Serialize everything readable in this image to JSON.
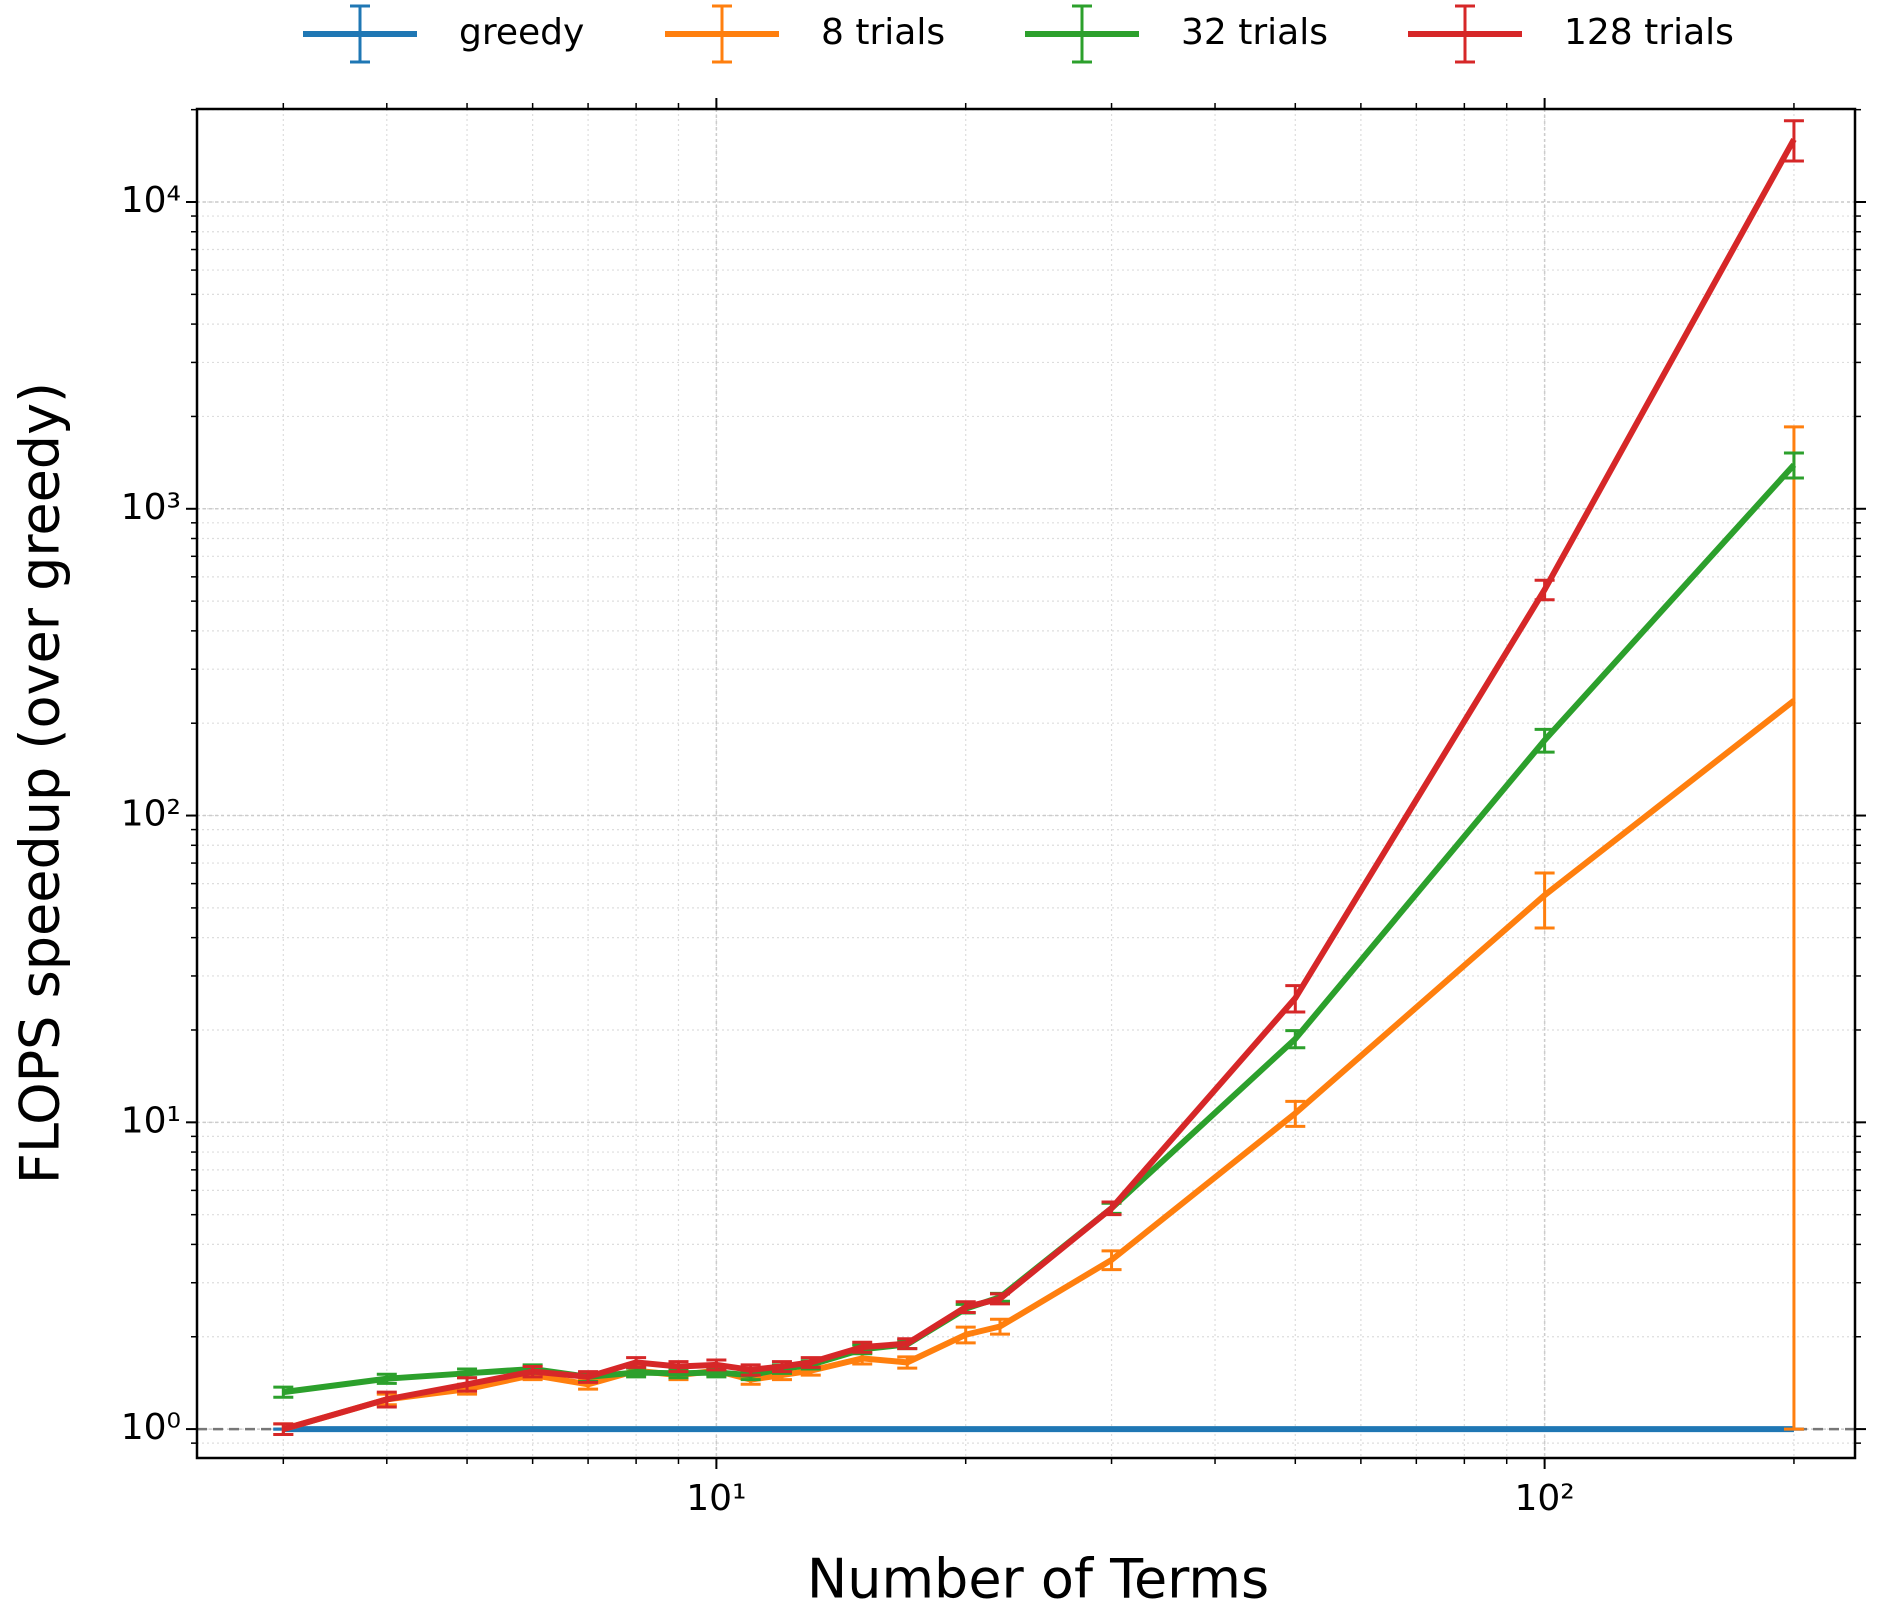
{
  "chart_data": {
    "type": "line",
    "x_label": "Number of Terms",
    "y_label": "FLOPS speedup (over greedy)",
    "x": [
      3,
      4,
      5,
      6,
      7,
      8,
      9,
      10,
      11,
      12,
      13,
      15,
      17,
      20,
      22,
      30,
      50,
      100,
      200
    ],
    "series": [
      {
        "name": "greedy",
        "color": "#1f77b4",
        "values": [
          1,
          1,
          1,
          1,
          1,
          1,
          1,
          1,
          1,
          1,
          1,
          1,
          1,
          1,
          1,
          1,
          1,
          1,
          1
        ],
        "error_lower": [
          0,
          0,
          0,
          0,
          0,
          0,
          0,
          0,
          0,
          0,
          0,
          0,
          0,
          0,
          0,
          0,
          0,
          0,
          0
        ],
        "error_upper": [
          0,
          0,
          0,
          0,
          0,
          0,
          0,
          0,
          0,
          0,
          0,
          0,
          0,
          0,
          0,
          0,
          0,
          0,
          0
        ]
      },
      {
        "name": "8 trials",
        "color": "#ff7f0e",
        "values": [
          1.0,
          1.25,
          1.35,
          1.5,
          1.4,
          1.55,
          1.5,
          1.55,
          1.45,
          1.5,
          1.55,
          1.7,
          1.65,
          2.03,
          2.16,
          3.56,
          10.7,
          55,
          237
        ],
        "error_lower": [
          0.04,
          0.05,
          0.05,
          0.05,
          0.05,
          0.05,
          0.05,
          0.05,
          0.05,
          0.05,
          0.05,
          0.07,
          0.07,
          0.12,
          0.12,
          0.25,
          1.0,
          12,
          236
        ],
        "error_upper": [
          0.04,
          0.05,
          0.05,
          0.05,
          0.05,
          0.05,
          0.05,
          0.05,
          0.05,
          0.05,
          0.05,
          0.07,
          0.07,
          0.12,
          0.12,
          0.25,
          1.0,
          10,
          1613
        ]
      },
      {
        "name": "32 trials",
        "color": "#2ca02c",
        "values": [
          1.32,
          1.46,
          1.52,
          1.57,
          1.48,
          1.53,
          1.52,
          1.53,
          1.5,
          1.57,
          1.62,
          1.82,
          1.89,
          2.47,
          2.69,
          5.25,
          18.7,
          176,
          1390
        ],
        "error_lower": [
          0.05,
          0.05,
          0.05,
          0.05,
          0.05,
          0.05,
          0.05,
          0.05,
          0.05,
          0.05,
          0.05,
          0.06,
          0.06,
          0.08,
          0.08,
          0.2,
          1.2,
          15,
          130
        ],
        "error_upper": [
          0.05,
          0.05,
          0.05,
          0.05,
          0.05,
          0.05,
          0.05,
          0.05,
          0.05,
          0.05,
          0.05,
          0.06,
          0.06,
          0.08,
          0.08,
          0.2,
          1.2,
          15,
          130
        ]
      },
      {
        "name": "128 trials",
        "color": "#d62728",
        "values": [
          1.0,
          1.25,
          1.4,
          1.54,
          1.48,
          1.65,
          1.6,
          1.62,
          1.56,
          1.6,
          1.65,
          1.85,
          1.9,
          2.5,
          2.66,
          5.25,
          25.4,
          545,
          16000
        ],
        "error_lower": [
          0.04,
          0.07,
          0.07,
          0.06,
          0.06,
          0.06,
          0.06,
          0.06,
          0.06,
          0.06,
          0.06,
          0.07,
          0.07,
          0.1,
          0.1,
          0.25,
          2.5,
          40,
          2400
        ],
        "error_upper": [
          0.04,
          0.07,
          0.07,
          0.06,
          0.06,
          0.06,
          0.06,
          0.06,
          0.06,
          0.06,
          0.06,
          0.07,
          0.07,
          0.1,
          0.1,
          0.25,
          2.5,
          40,
          2400
        ]
      }
    ],
    "xlim": [
      2.36,
      237
    ],
    "ylim": [
      0.805,
      20100
    ],
    "xticks": [
      {
        "value": 10,
        "label": "10¹"
      },
      {
        "value": 100,
        "label": "10²"
      }
    ],
    "yticks": [
      {
        "value": 1,
        "label": "10⁰"
      },
      {
        "value": 10,
        "label": "10¹"
      },
      {
        "value": 100,
        "label": "10²"
      },
      {
        "value": 1000,
        "label": "10³"
      },
      {
        "value": 10000,
        "label": "10⁴"
      }
    ],
    "log_x": true,
    "log_y": true,
    "grid": true,
    "hline": 1,
    "legend": "top"
  }
}
